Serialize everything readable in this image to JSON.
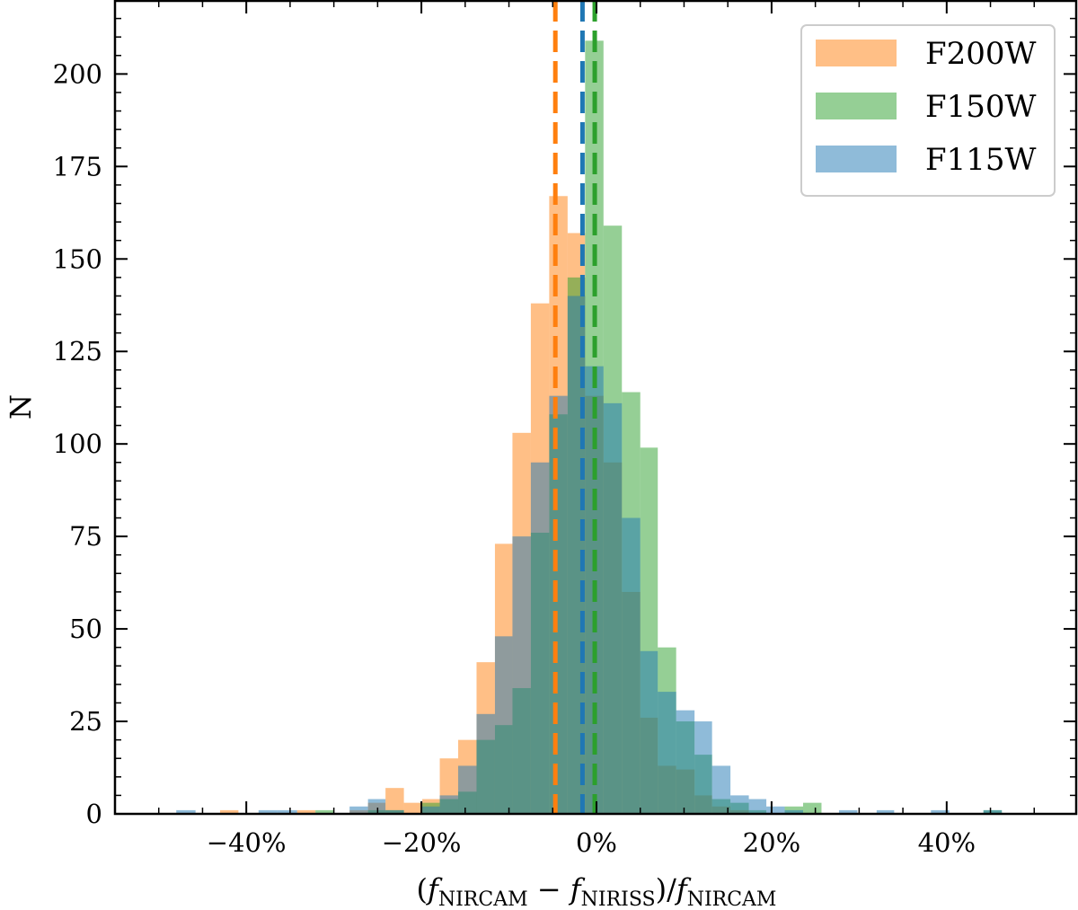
{
  "chart_data": {
    "type": "histogram",
    "title": "",
    "xlabel": "(f_NIRCAM − f_NIRISS)/f_NIRCAM",
    "xlabel_parts": {
      "open": "(",
      "f1": "f",
      "sub1": "NIRCAM",
      "minus": " − ",
      "f2": "f",
      "sub2": "NIRISS",
      "slash": ")/",
      "f3": "f",
      "sub3": "NIRCAM"
    },
    "ylabel": "N",
    "xlim": [
      -55,
      55
    ],
    "ylim": [
      0,
      220
    ],
    "xticks": [
      -40,
      -20,
      0,
      20,
      40
    ],
    "xtick_labels": [
      "−40%",
      "−20%",
      "0%",
      "20%",
      "40%"
    ],
    "yticks": [
      0,
      25,
      50,
      75,
      100,
      125,
      150,
      175,
      200
    ],
    "ytick_labels": [
      "0",
      "25",
      "50",
      "75",
      "100",
      "125",
      "150",
      "175",
      "200"
    ],
    "legend_position": "top-right",
    "series": [
      {
        "name": "F200W",
        "color": "#ff7f0e",
        "opacity": 0.5,
        "median_line": -4.7,
        "bins": [
          {
            "x0": -48.0,
            "x1": -45.8,
            "count": 0
          },
          {
            "x0": -43.0,
            "x1": -40.9,
            "count": 1
          },
          {
            "x0": -34.2,
            "x1": -32.1,
            "count": 1
          },
          {
            "x0": -28.2,
            "x1": -26.1,
            "count": 1
          },
          {
            "x0": -26.1,
            "x1": -24.1,
            "count": 3
          },
          {
            "x0": -24.1,
            "x1": -22.0,
            "count": 7
          },
          {
            "x0": -22.0,
            "x1": -19.9,
            "count": 3
          },
          {
            "x0": -19.9,
            "x1": -17.9,
            "count": 4
          },
          {
            "x0": -17.9,
            "x1": -15.8,
            "count": 15
          },
          {
            "x0": -15.8,
            "x1": -13.7,
            "count": 20
          },
          {
            "x0": -13.7,
            "x1": -11.6,
            "count": 41
          },
          {
            "x0": -11.6,
            "x1": -9.6,
            "count": 73
          },
          {
            "x0": -9.6,
            "x1": -7.5,
            "count": 103
          },
          {
            "x0": -7.5,
            "x1": -5.4,
            "count": 138
          },
          {
            "x0": -5.4,
            "x1": -3.3,
            "count": 167
          },
          {
            "x0": -3.3,
            "x1": -1.3,
            "count": 157
          },
          {
            "x0": -1.3,
            "x1": 0.8,
            "count": 113
          },
          {
            "x0": 0.8,
            "x1": 2.9,
            "count": 95
          },
          {
            "x0": 2.9,
            "x1": 5.0,
            "count": 60
          },
          {
            "x0": 5.0,
            "x1": 7.0,
            "count": 26
          },
          {
            "x0": 7.0,
            "x1": 9.1,
            "count": 13
          },
          {
            "x0": 9.1,
            "x1": 11.2,
            "count": 12
          },
          {
            "x0": 11.2,
            "x1": 13.2,
            "count": 5
          },
          {
            "x0": 13.2,
            "x1": 15.3,
            "count": 2
          },
          {
            "x0": 15.3,
            "x1": 17.4,
            "count": 1
          }
        ]
      },
      {
        "name": "F150W",
        "color": "#2ca02c",
        "opacity": 0.5,
        "median_line": -0.2,
        "bins": [
          {
            "x0": -32.1,
            "x1": -30.0,
            "count": 1
          },
          {
            "x0": -26.1,
            "x1": -24.1,
            "count": 1
          },
          {
            "x0": -24.1,
            "x1": -22.0,
            "count": 1
          },
          {
            "x0": -19.9,
            "x1": -17.9,
            "count": 3
          },
          {
            "x0": -17.9,
            "x1": -15.8,
            "count": 4
          },
          {
            "x0": -15.8,
            "x1": -13.7,
            "count": 6
          },
          {
            "x0": -13.7,
            "x1": -11.6,
            "count": 20
          },
          {
            "x0": -11.6,
            "x1": -9.6,
            "count": 24
          },
          {
            "x0": -9.6,
            "x1": -7.5,
            "count": 34
          },
          {
            "x0": -7.5,
            "x1": -5.4,
            "count": 76
          },
          {
            "x0": -5.4,
            "x1": -3.3,
            "count": 108
          },
          {
            "x0": -3.3,
            "x1": -1.3,
            "count": 145
          },
          {
            "x0": -1.3,
            "x1": 0.8,
            "count": 209
          },
          {
            "x0": 0.8,
            "x1": 2.9,
            "count": 159
          },
          {
            "x0": 2.9,
            "x1": 5.0,
            "count": 114
          },
          {
            "x0": 5.0,
            "x1": 7.0,
            "count": 99
          },
          {
            "x0": 7.0,
            "x1": 9.1,
            "count": 45
          },
          {
            "x0": 9.1,
            "x1": 11.2,
            "count": 25
          },
          {
            "x0": 11.2,
            "x1": 13.2,
            "count": 16
          },
          {
            "x0": 13.2,
            "x1": 15.3,
            "count": 4
          },
          {
            "x0": 15.3,
            "x1": 17.4,
            "count": 3
          },
          {
            "x0": 17.4,
            "x1": 19.4,
            "count": 1
          },
          {
            "x0": 21.5,
            "x1": 23.6,
            "count": 2
          },
          {
            "x0": 23.6,
            "x1": 25.7,
            "count": 3
          },
          {
            "x0": 44.2,
            "x1": 46.3,
            "count": 1
          }
        ]
      },
      {
        "name": "F115W",
        "color": "#1f77b4",
        "opacity": 0.5,
        "median_line": -1.6,
        "bins": [
          {
            "x0": -48.0,
            "x1": -45.8,
            "count": 1
          },
          {
            "x0": -38.6,
            "x1": -36.5,
            "count": 1
          },
          {
            "x0": -36.5,
            "x1": -34.2,
            "count": 1
          },
          {
            "x0": -28.2,
            "x1": -26.1,
            "count": 2
          },
          {
            "x0": -26.1,
            "x1": -24.1,
            "count": 4
          },
          {
            "x0": -24.1,
            "x1": -22.0,
            "count": 1
          },
          {
            "x0": -19.9,
            "x1": -17.9,
            "count": 2
          },
          {
            "x0": -17.9,
            "x1": -15.8,
            "count": 5
          },
          {
            "x0": -15.8,
            "x1": -13.7,
            "count": 13
          },
          {
            "x0": -13.7,
            "x1": -11.6,
            "count": 27
          },
          {
            "x0": -11.6,
            "x1": -9.6,
            "count": 48
          },
          {
            "x0": -9.6,
            "x1": -7.5,
            "count": 75
          },
          {
            "x0": -7.5,
            "x1": -5.4,
            "count": 95
          },
          {
            "x0": -5.4,
            "x1": -3.3,
            "count": 113
          },
          {
            "x0": -3.3,
            "x1": -1.3,
            "count": 140
          },
          {
            "x0": -1.3,
            "x1": 0.8,
            "count": 121
          },
          {
            "x0": 0.8,
            "x1": 2.9,
            "count": 111
          },
          {
            "x0": 2.9,
            "x1": 5.0,
            "count": 80
          },
          {
            "x0": 5.0,
            "x1": 7.0,
            "count": 44
          },
          {
            "x0": 7.0,
            "x1": 9.1,
            "count": 33
          },
          {
            "x0": 9.1,
            "x1": 11.2,
            "count": 28
          },
          {
            "x0": 11.2,
            "x1": 13.2,
            "count": 25
          },
          {
            "x0": 13.2,
            "x1": 15.3,
            "count": 13
          },
          {
            "x0": 15.3,
            "x1": 17.4,
            "count": 5
          },
          {
            "x0": 17.4,
            "x1": 19.4,
            "count": 4
          },
          {
            "x0": 19.4,
            "x1": 21.5,
            "count": 2
          },
          {
            "x0": 21.5,
            "x1": 23.6,
            "count": 1
          },
          {
            "x0": 27.7,
            "x1": 29.8,
            "count": 1
          },
          {
            "x0": 32.0,
            "x1": 34.0,
            "count": 1
          },
          {
            "x0": 38.2,
            "x1": 40.3,
            "count": 1
          },
          {
            "x0": 44.2,
            "x1": 46.3,
            "count": 1
          }
        ]
      }
    ],
    "legend_order": [
      "F200W",
      "F150W",
      "F115W"
    ]
  }
}
